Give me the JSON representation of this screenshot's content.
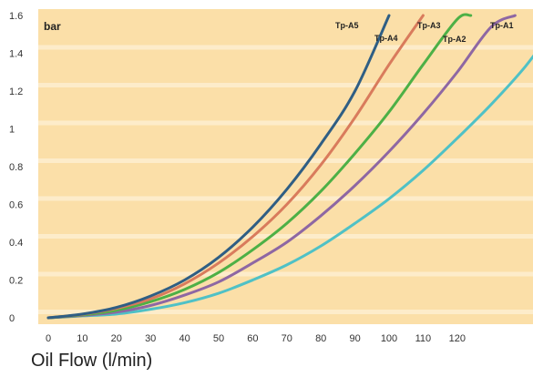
{
  "chart_data": {
    "type": "line",
    "ylabel": "bar",
    "xlabel": "Oil Flow (l/min)",
    "xlim": [
      0,
      160
    ],
    "ylim": [
      0,
      1.6
    ],
    "x_ticks": [
      "0",
      "10",
      "20",
      "30",
      "40",
      "50",
      "60",
      "70",
      "80",
      "90",
      "100",
      "110",
      "120"
    ],
    "y_ticks": [
      "0",
      "0.2",
      "0.4",
      "0.6",
      "0.8",
      "1",
      "1.2",
      "1.4",
      "1.6"
    ],
    "grid": "horizontal",
    "series": [
      {
        "name": "Tp-A1",
        "color": "#4fc1c6",
        "x": [
          0,
          10,
          20,
          30,
          40,
          50,
          60,
          70,
          80,
          90,
          100,
          110,
          120,
          130,
          140,
          147
        ],
        "y": [
          0,
          0.01,
          0.02,
          0.045,
          0.08,
          0.13,
          0.2,
          0.28,
          0.38,
          0.5,
          0.63,
          0.78,
          0.95,
          1.13,
          1.33,
          1.5
        ]
      },
      {
        "name": "Tp-A2",
        "color": "#8e67a3",
        "x": [
          0,
          10,
          20,
          30,
          40,
          50,
          60,
          70,
          80,
          90,
          100,
          110,
          120,
          130,
          137
        ],
        "y": [
          0,
          0.012,
          0.03,
          0.065,
          0.12,
          0.19,
          0.29,
          0.4,
          0.54,
          0.7,
          0.88,
          1.08,
          1.3,
          1.54,
          1.6
        ]
      },
      {
        "name": "Tp-A3",
        "color": "#4db046",
        "x": [
          0,
          10,
          20,
          30,
          40,
          50,
          60,
          70,
          80,
          90,
          100,
          110,
          120,
          124
        ],
        "y": [
          0,
          0.015,
          0.04,
          0.085,
          0.15,
          0.24,
          0.36,
          0.5,
          0.67,
          0.87,
          1.09,
          1.34,
          1.58,
          1.6
        ]
      },
      {
        "name": "Tp-A4",
        "color": "#d97b5c",
        "x": [
          0,
          10,
          20,
          30,
          40,
          50,
          60,
          70,
          80,
          90,
          100,
          110
        ],
        "y": [
          0,
          0.018,
          0.05,
          0.1,
          0.18,
          0.29,
          0.43,
          0.6,
          0.81,
          1.06,
          1.34,
          1.6
        ]
      },
      {
        "name": "Tp-A5",
        "color": "#2f5e84",
        "x": [
          0,
          10,
          20,
          30,
          40,
          50,
          60,
          70,
          80,
          90,
          100
        ],
        "y": [
          0,
          0.02,
          0.055,
          0.115,
          0.2,
          0.32,
          0.48,
          0.68,
          0.92,
          1.2,
          1.6
        ]
      }
    ],
    "background_color": "#fbdfa8",
    "grid_color": "#fdeed0"
  }
}
